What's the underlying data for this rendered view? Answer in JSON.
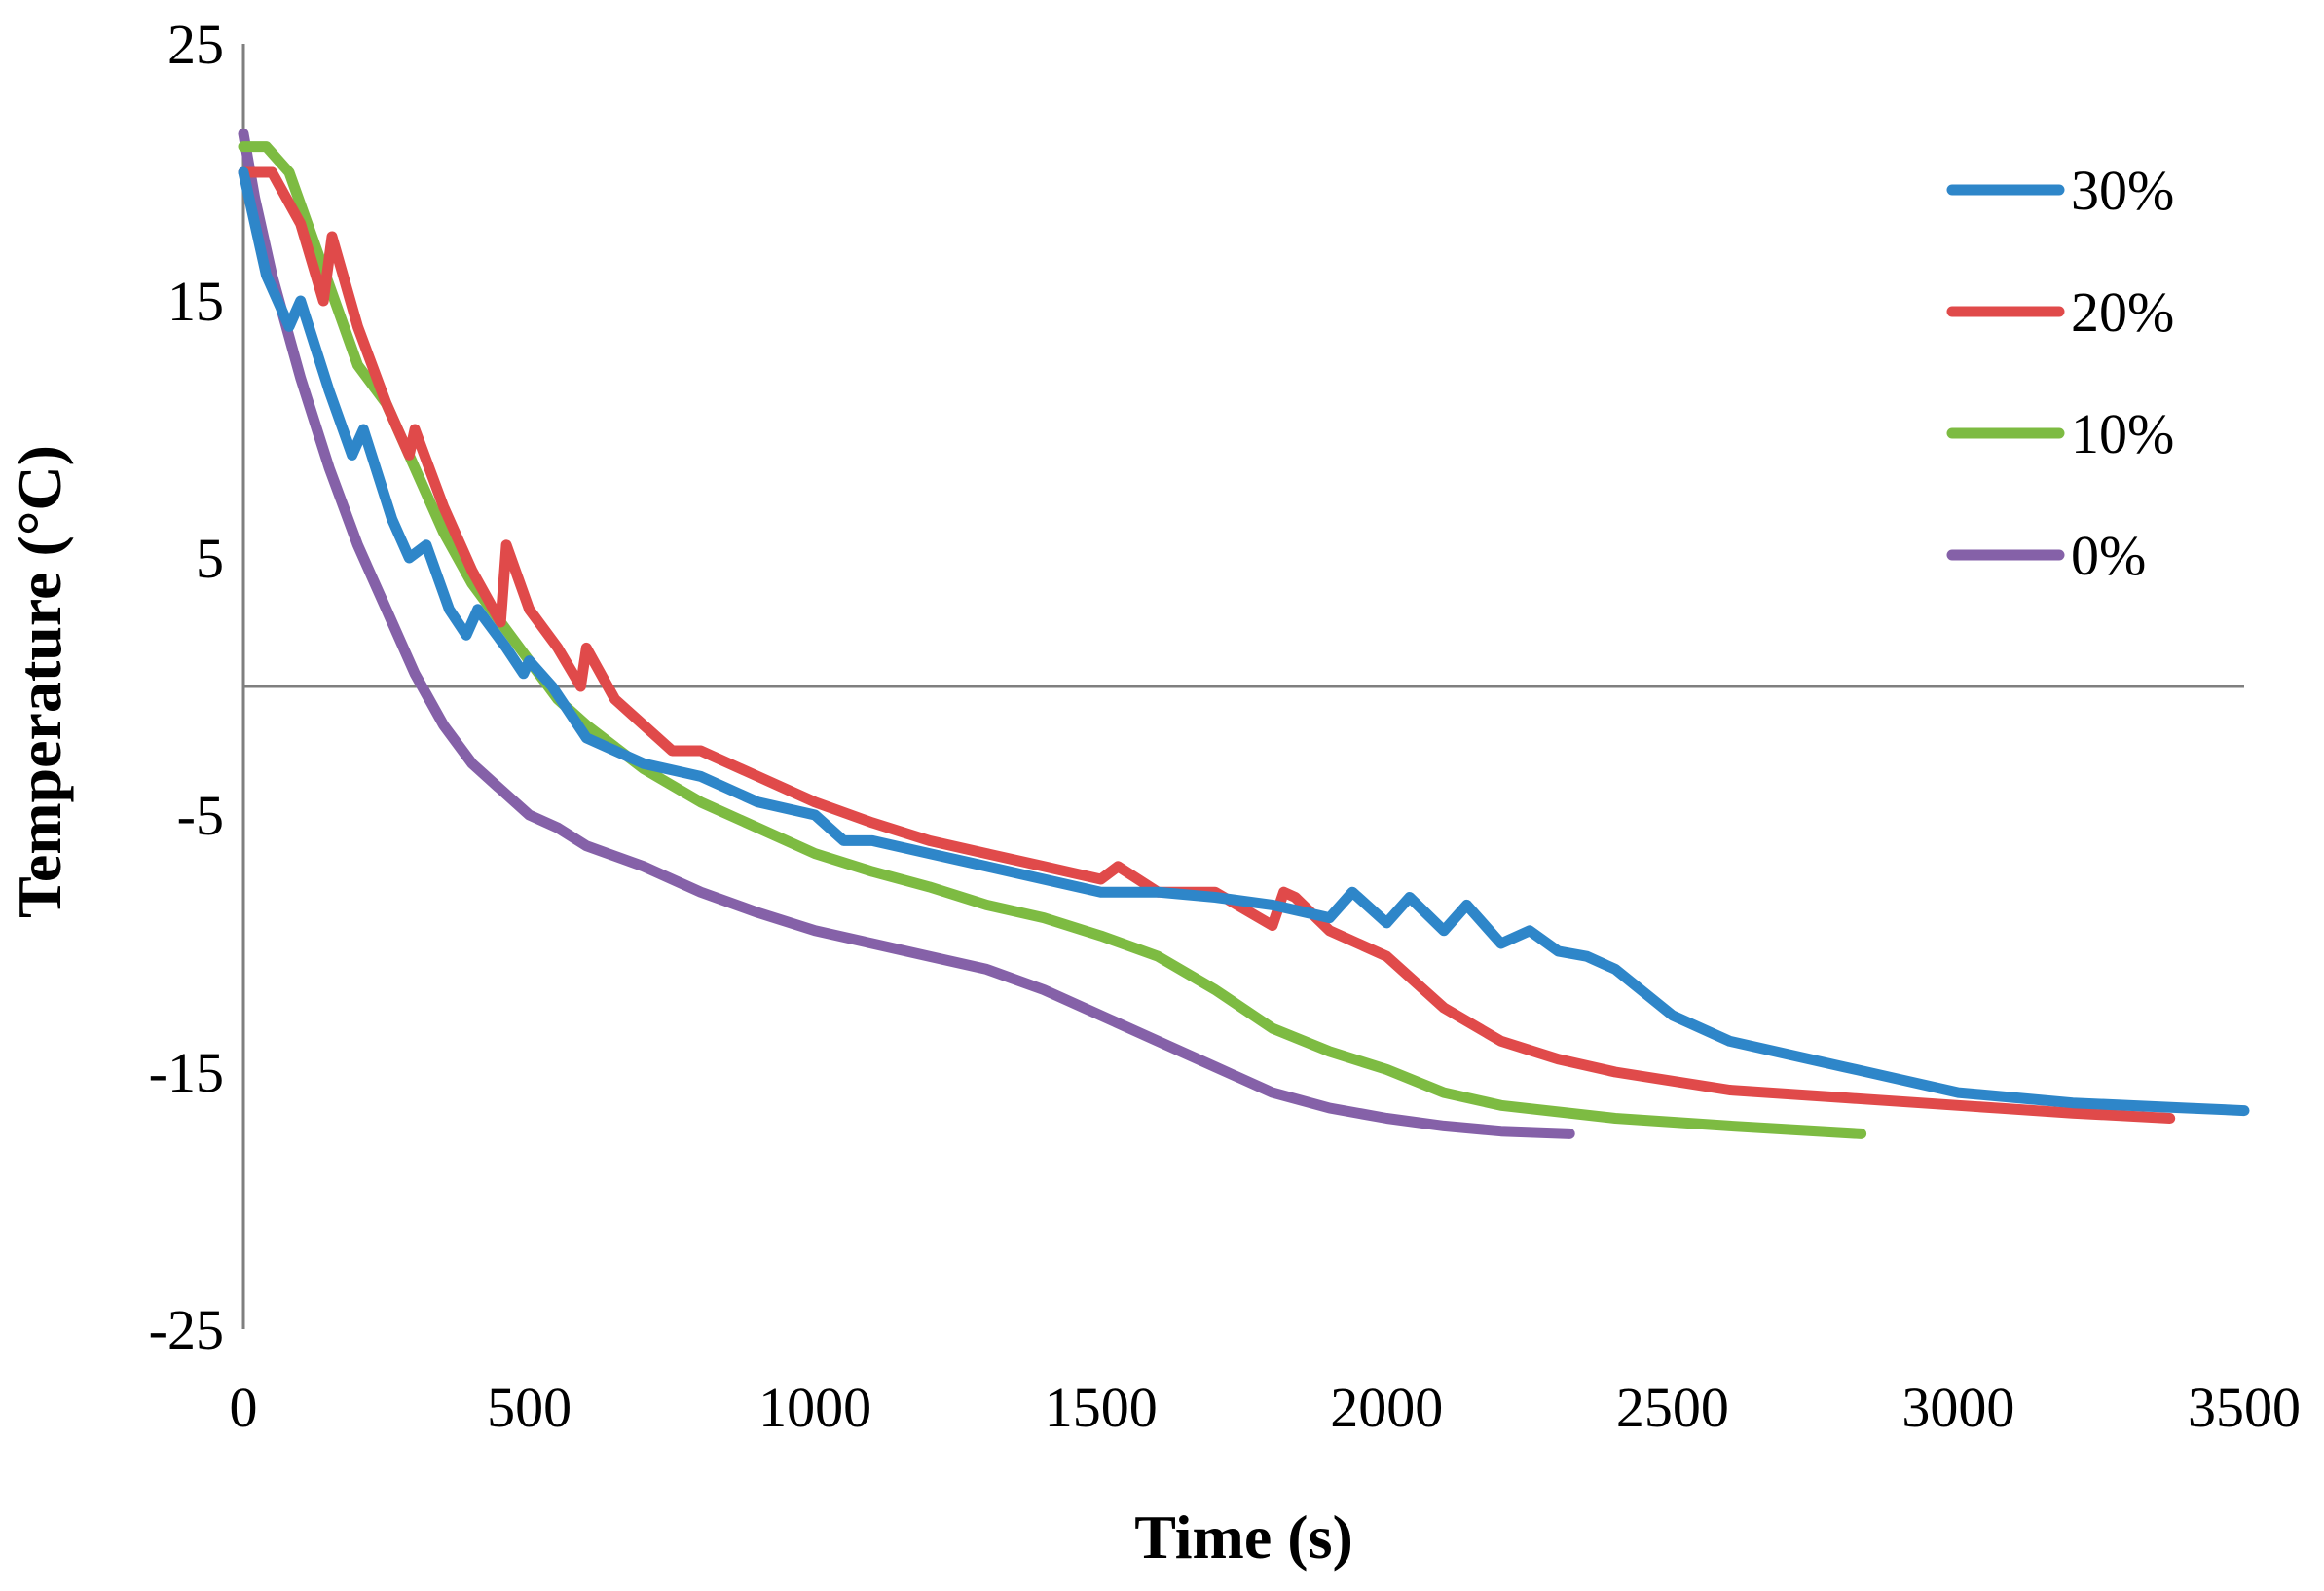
{
  "chart_data": {
    "type": "line",
    "title": "",
    "xlabel": "Time (s)",
    "ylabel": "Temperature (°C)",
    "xlim": [
      0,
      3500
    ],
    "ylim": [
      -25,
      25
    ],
    "xticks": [
      0,
      500,
      1000,
      1500,
      2000,
      2500,
      3000,
      3500
    ],
    "yticks": [
      25,
      15,
      5,
      -5,
      -15,
      -25
    ],
    "legend_position": "top-right",
    "series": [
      {
        "name": "30%",
        "color": "#2e86c9",
        "x": [
          0,
          40,
          80,
          100,
          150,
          190,
          210,
          260,
          290,
          320,
          360,
          390,
          410,
          460,
          490,
          500,
          540,
          600,
          700,
          800,
          900,
          1000,
          1050,
          1100,
          1200,
          1300,
          1400,
          1500,
          1600,
          1700,
          1800,
          1900,
          1940,
          2000,
          2040,
          2100,
          2140,
          2200,
          2250,
          2300,
          2350,
          2400,
          2500,
          2600,
          2800,
          3000,
          3200,
          3400,
          3500
        ],
        "y": [
          20,
          16,
          14,
          15,
          11.5,
          9,
          10,
          6.5,
          5,
          5.5,
          3,
          2,
          3,
          1.5,
          0.5,
          1,
          0,
          -2,
          -3,
          -3.5,
          -4.5,
          -5,
          -6,
          -6,
          -6.5,
          -7,
          -7.5,
          -8,
          -8,
          -8.2,
          -8.5,
          -9,
          -8,
          -9.2,
          -8.2,
          -9.5,
          -8.5,
          -10,
          -9.5,
          -10.3,
          -10.5,
          -11,
          -12.8,
          -13.8,
          -14.8,
          -15.8,
          -16.2,
          -16.4,
          -16.5
        ]
      },
      {
        "name": "20%",
        "color": "#e04a4a",
        "x": [
          0,
          50,
          100,
          140,
          155,
          200,
          250,
          290,
          300,
          350,
          400,
          450,
          460,
          500,
          550,
          590,
          600,
          650,
          700,
          750,
          800,
          900,
          1000,
          1100,
          1200,
          1300,
          1400,
          1500,
          1530,
          1600,
          1700,
          1800,
          1820,
          1840,
          1900,
          2000,
          2100,
          2200,
          2300,
          2400,
          2600,
          2800,
          3000,
          3200,
          3370
        ],
        "y": [
          20,
          20,
          18,
          15,
          17.5,
          14,
          11,
          9,
          10,
          7,
          4.5,
          2.5,
          5.5,
          3,
          1.5,
          0,
          1.5,
          -0.5,
          -1.5,
          -2.5,
          -2.5,
          -3.5,
          -4.5,
          -5.3,
          -6,
          -6.5,
          -7,
          -7.5,
          -7,
          -8,
          -8,
          -9.3,
          -8,
          -8.2,
          -9.5,
          -10.5,
          -12.5,
          -13.8,
          -14.5,
          -15,
          -15.7,
          -16,
          -16.3,
          -16.6,
          -16.8
        ]
      },
      {
        "name": "10%",
        "color": "#7dbb42",
        "x": [
          0,
          40,
          80,
          120,
          160,
          200,
          250,
          300,
          350,
          400,
          450,
          500,
          550,
          600,
          700,
          800,
          900,
          1000,
          1100,
          1200,
          1300,
          1400,
          1500,
          1600,
          1700,
          1800,
          1900,
          2000,
          2100,
          2200,
          2400,
          2600,
          2830
        ],
        "y": [
          21,
          21,
          20,
          17.5,
          15,
          12.5,
          11,
          8.5,
          6,
          4,
          2.5,
          1,
          -0.5,
          -1.5,
          -3.2,
          -4.5,
          -5.5,
          -6.5,
          -7.2,
          -7.8,
          -8.5,
          -9,
          -9.7,
          -10.5,
          -11.8,
          -13.3,
          -14.2,
          -14.9,
          -15.8,
          -16.3,
          -16.8,
          -17.1,
          -17.4
        ]
      },
      {
        "name": "0%",
        "color": "#8561a8",
        "x": [
          0,
          20,
          50,
          100,
          150,
          200,
          250,
          300,
          350,
          400,
          450,
          500,
          550,
          600,
          700,
          800,
          900,
          1000,
          1100,
          1200,
          1300,
          1400,
          1500,
          1600,
          1700,
          1800,
          1900,
          2000,
          2100,
          2200,
          2320
        ],
        "y": [
          21.5,
          19,
          16,
          12,
          8.5,
          5.5,
          3,
          0.5,
          -1.5,
          -3,
          -4,
          -5,
          -5.5,
          -6.2,
          -7,
          -8,
          -8.8,
          -9.5,
          -10,
          -10.5,
          -11,
          -11.8,
          -12.8,
          -13.8,
          -14.8,
          -15.8,
          -16.4,
          -16.8,
          -17.1,
          -17.3,
          -17.4
        ]
      }
    ]
  }
}
